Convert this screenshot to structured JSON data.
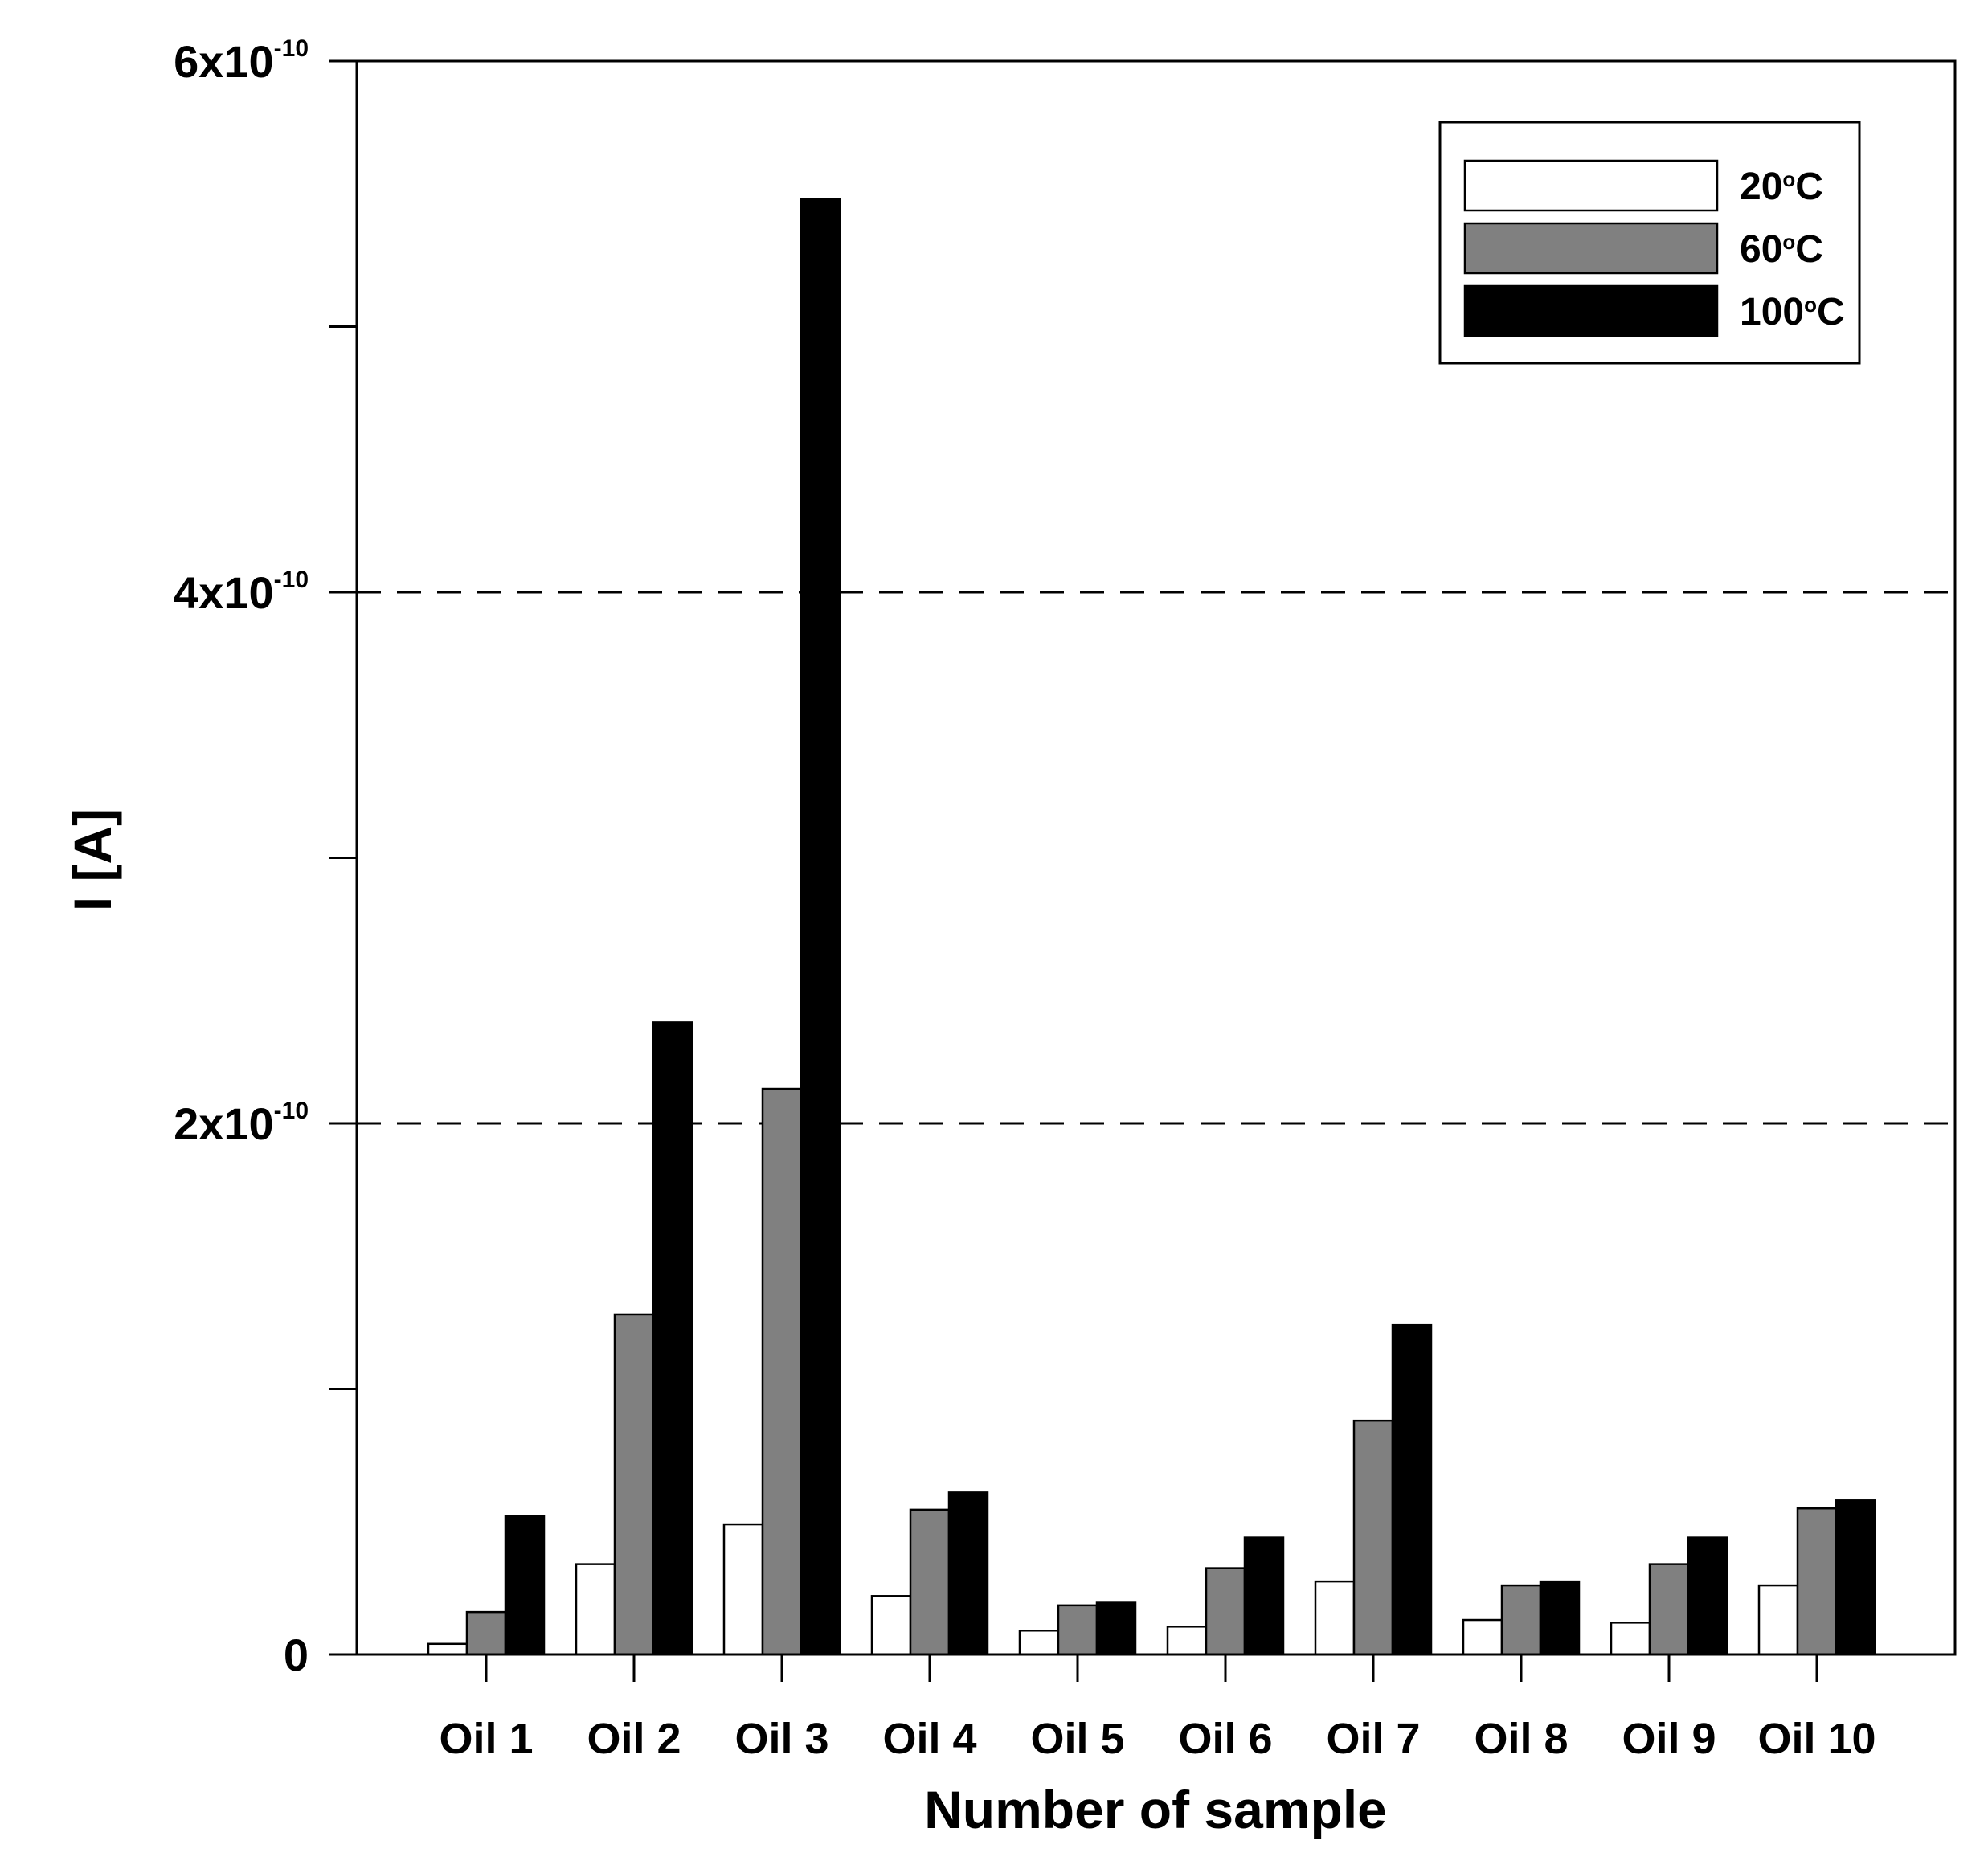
{
  "chart_data": {
    "type": "bar",
    "title": "",
    "xlabel": "Number of sample",
    "ylabel": "I [A]",
    "ylim": [
      0,
      6e-10
    ],
    "yticks": [
      {
        "value": 0,
        "base": "0",
        "exp": ""
      },
      {
        "value": 2e-10,
        "base": "2x10",
        "exp": "-10"
      },
      {
        "value": 4e-10,
        "base": "4x10",
        "exp": "-10"
      },
      {
        "value": 6e-10,
        "base": "6x10",
        "exp": "-10"
      }
    ],
    "minor_ticks": [
      1e-10,
      3e-10,
      5e-10
    ],
    "gridlines_dashed_at": [
      2e-10,
      4e-10
    ],
    "categories": [
      "Oil 1",
      "Oil 2",
      "Oil 3",
      "Oil 4",
      "Oil 5",
      "Oil 6",
      "Oil 7",
      "Oil 8",
      "Oil 9",
      "Oil 10"
    ],
    "series": [
      {
        "name": "20",
        "unit": "C",
        "degree_mark": "o",
        "color": "#ffffff",
        "values": [
          4e-12,
          3.4e-11,
          4.9e-11,
          2.2e-11,
          9e-12,
          1.05e-11,
          2.75e-11,
          1.3e-11,
          1.2e-11,
          2.6e-11
        ]
      },
      {
        "name": "60",
        "unit": "C",
        "degree_mark": "o",
        "color": "#808080",
        "values": [
          1.6e-11,
          1.28e-10,
          2.13e-10,
          5.45e-11,
          1.85e-11,
          3.25e-11,
          8.8e-11,
          2.6e-11,
          3.4e-11,
          5.5e-11
        ]
      },
      {
        "name": "100",
        "unit": "C",
        "degree_mark": "o",
        "color": "#000000",
        "values": [
          5.2e-11,
          2.38e-10,
          5.48e-10,
          6.1e-11,
          1.95e-11,
          4.4e-11,
          1.24e-10,
          2.75e-11,
          4.4e-11,
          5.8e-11
        ]
      }
    ],
    "legend_position": "top-right",
    "grid": false
  }
}
